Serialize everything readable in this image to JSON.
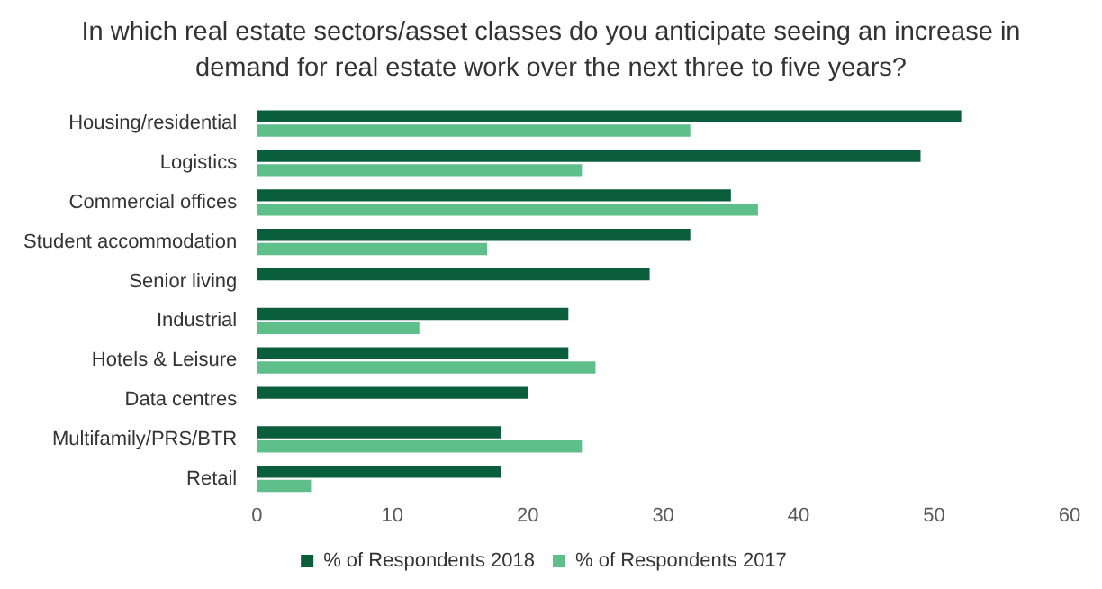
{
  "chart_data": {
    "type": "bar",
    "orientation": "horizontal",
    "title": "In which real estate sectors/asset classes do you anticipate seeing an increase in demand for real estate work over the next three to five years?",
    "categories": [
      "Housing/residential",
      "Logistics",
      "Commercial offices",
      "Student accommodation",
      "Senior living",
      "Industrial",
      "Hotels & Leisure",
      "Data centres",
      "Multifamily/PRS/BTR",
      "Retail"
    ],
    "series": [
      {
        "name": "% of Respondents 2018",
        "color": "#0b5e3b",
        "values": [
          52,
          49,
          35,
          32,
          29,
          23,
          23,
          20,
          18,
          18
        ]
      },
      {
        "name": "% of Respondents 2017",
        "color": "#5fbf8b",
        "values": [
          32,
          24,
          37,
          17,
          null,
          12,
          25,
          null,
          24,
          4
        ]
      }
    ],
    "xlim": [
      0,
      60
    ],
    "xticks": [
      0,
      10,
      20,
      30,
      40,
      50,
      60
    ],
    "grid": false,
    "legend": "bottom"
  }
}
